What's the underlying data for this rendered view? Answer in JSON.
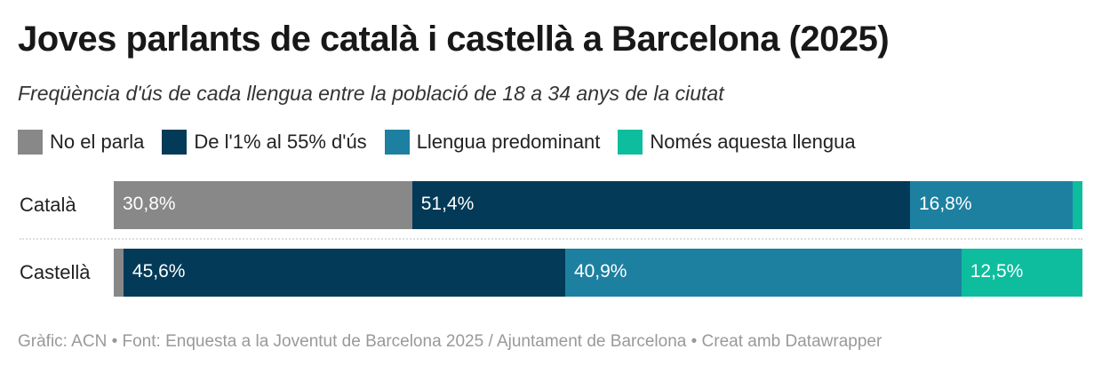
{
  "title": "Joves parlants de català i castellà a Barcelona (2025)",
  "subtitle": "Freqüència d'ús de cada llengua entre la població de 18 a 34 anys de la ciutat",
  "footer": "Gràfic: ACN • Font: Enquesta a la Joventut de Barcelona 2025 / Ajuntament de Barcelona • Creat amb Datawrapper",
  "chart_data": {
    "type": "bar",
    "orientation": "horizontal",
    "stacked": true,
    "categories": [
      "Català",
      "Castellà"
    ],
    "xlim": [
      0,
      100
    ],
    "legend_placement": "top-left",
    "series": [
      {
        "name": "No el parla",
        "color": "#888888",
        "values": [
          30.8,
          1.0
        ],
        "labels": [
          "30,8%",
          ""
        ]
      },
      {
        "name": "De l'1% al 55% d'ús",
        "color": "#023a57",
        "values": [
          51.4,
          45.6
        ],
        "labels": [
          "51,4%",
          "45,6%"
        ]
      },
      {
        "name": "Llengua predominant",
        "color": "#1d80a1",
        "values": [
          16.8,
          40.9
        ],
        "labels": [
          "16,8%",
          "40,9%"
        ]
      },
      {
        "name": "Només aquesta llengua",
        "color": "#0dbd9e",
        "values": [
          1.0,
          12.5
        ],
        "labels": [
          "",
          "12,5%"
        ]
      }
    ]
  }
}
